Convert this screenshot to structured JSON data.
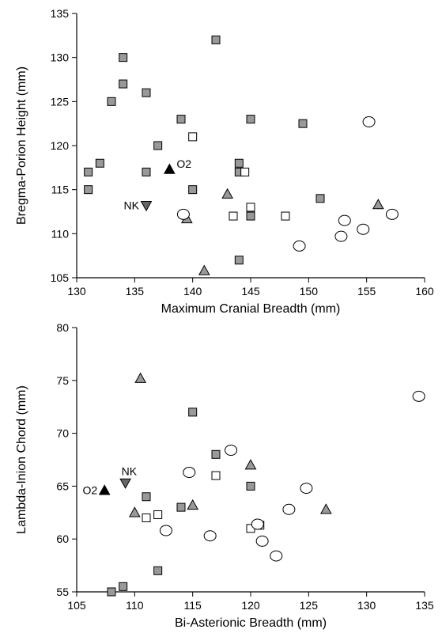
{
  "chart_data": [
    {
      "type": "scatter",
      "xlabel": "Maximum Cranial Breadth (mm)",
      "ylabel": "Bregma-Porion Height (mm)",
      "xlim": [
        130,
        160
      ],
      "ylim": [
        105,
        135
      ],
      "xticks": [
        130,
        135,
        140,
        145,
        150,
        155,
        160
      ],
      "yticks": [
        105,
        110,
        115,
        120,
        125,
        130,
        135
      ],
      "grid": false,
      "series": [
        {
          "marker": "square",
          "fill": "#999999",
          "points": [
            [
              131,
              117
            ],
            [
              131,
              115
            ],
            [
              132,
              118
            ],
            [
              133,
              125
            ],
            [
              134,
              130
            ],
            [
              134,
              127
            ],
            [
              136,
              126
            ],
            [
              136,
              117
            ],
            [
              137,
              120
            ],
            [
              139,
              123
            ],
            [
              140,
              115
            ],
            [
              142,
              132
            ],
            [
              144,
              118
            ],
            [
              144,
              117
            ],
            [
              145,
              123
            ],
            [
              145,
              112
            ],
            [
              144,
              107
            ],
            [
              149.5,
              122.5
            ],
            [
              151,
              114
            ]
          ]
        },
        {
          "marker": "square",
          "fill": "#ffffff",
          "points": [
            [
              140,
              121
            ],
            [
              144.5,
              117
            ],
            [
              143.5,
              112
            ],
            [
              145,
              113
            ],
            [
              148,
              112
            ]
          ]
        },
        {
          "marker": "triangle-up",
          "fill": "#999999",
          "points": [
            [
              139.5,
              111.7
            ],
            [
              141,
              105.8
            ],
            [
              143,
              114.5
            ],
            [
              156,
              113.3
            ]
          ]
        },
        {
          "marker": "circle",
          "fill": "#ffffff",
          "points": [
            [
              139.2,
              112.2
            ],
            [
              149.2,
              108.6
            ],
            [
              152.8,
              109.7
            ],
            [
              153.1,
              111.5
            ],
            [
              154.7,
              110.5
            ],
            [
              155.2,
              122.7
            ],
            [
              157.2,
              112.2
            ]
          ]
        }
      ],
      "specimens": [
        {
          "label": "O2",
          "marker": "triangle-up",
          "fill": "#000000",
          "x": 138,
          "y": 117.3,
          "label_side": "right"
        },
        {
          "label": "NK",
          "marker": "triangle-down",
          "fill": "#666666",
          "x": 136,
          "y": 113.2,
          "label_side": "left"
        }
      ]
    },
    {
      "type": "scatter",
      "xlabel": "Bi-Asterionic Breadth (mm)",
      "ylabel": "Lambda-Inion Chord (mm)",
      "xlim": [
        105,
        135
      ],
      "ylim": [
        55,
        80
      ],
      "xticks": [
        105,
        110,
        115,
        120,
        125,
        130,
        135
      ],
      "yticks": [
        55,
        60,
        65,
        70,
        75,
        80
      ],
      "grid": false,
      "series": [
        {
          "marker": "square",
          "fill": "#999999",
          "points": [
            [
              108,
              55
            ],
            [
              109,
              55.5
            ],
            [
              111,
              64
            ],
            [
              112,
              57
            ],
            [
              114,
              63
            ],
            [
              115,
              72
            ],
            [
              117,
              68
            ],
            [
              120,
              65
            ]
          ]
        },
        {
          "marker": "square",
          "fill": "#ffffff",
          "points": [
            [
              111,
              62
            ],
            [
              112,
              62.3
            ],
            [
              117,
              66
            ],
            [
              120,
              61
            ],
            [
              120.8,
              61.3
            ]
          ]
        },
        {
          "marker": "triangle-up",
          "fill": "#999999",
          "points": [
            [
              110.5,
              75.2
            ],
            [
              110,
              62.5
            ],
            [
              115,
              63.2
            ],
            [
              120,
              67
            ],
            [
              126.5,
              62.8
            ]
          ]
        },
        {
          "marker": "circle",
          "fill": "#ffffff",
          "points": [
            [
              112.7,
              60.8
            ],
            [
              114.7,
              66.3
            ],
            [
              116.5,
              60.3
            ],
            [
              118.3,
              68.4
            ],
            [
              120.6,
              61.4
            ],
            [
              121,
              59.8
            ],
            [
              122.2,
              58.4
            ],
            [
              123.3,
              62.8
            ],
            [
              124.8,
              64.8
            ],
            [
              134.5,
              73.5
            ]
          ]
        }
      ],
      "specimens": [
        {
          "label": "O2",
          "marker": "triangle-up",
          "fill": "#000000",
          "x": 107.4,
          "y": 64.6,
          "label_side": "left"
        },
        {
          "label": "NK",
          "marker": "triangle-down",
          "fill": "#666666",
          "x": 109.2,
          "y": 65.3,
          "label_side": "above-right"
        }
      ]
    }
  ]
}
